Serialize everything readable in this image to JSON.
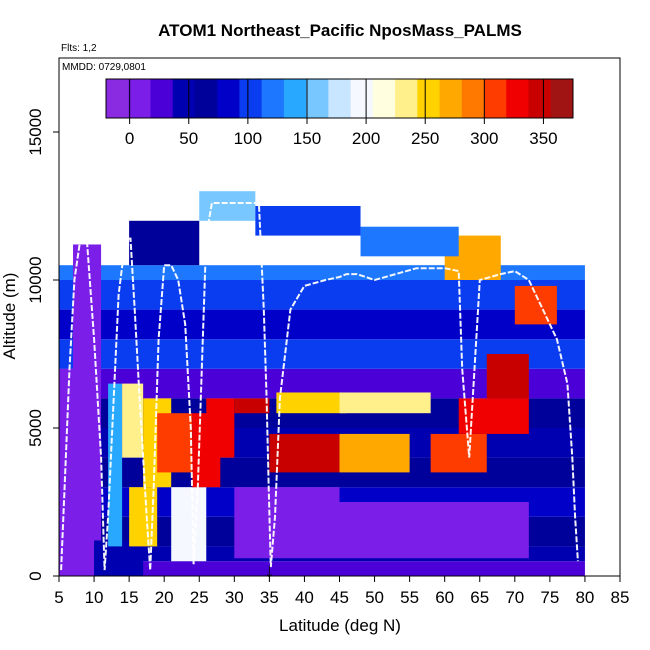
{
  "chart_data": {
    "type": "heatmap",
    "title": "ATOM1 Northeast_Pacific NposMass_PALMS",
    "flights_label": "Flts: 1,2",
    "date_label": "MMDD: 0729,0801",
    "xlabel": "Latitude (deg N)",
    "ylabel": "Altitude (m)",
    "xlim": [
      5,
      85
    ],
    "ylim": [
      0,
      17500
    ],
    "x_ticks": [
      "5",
      "10",
      "15",
      "20",
      "25",
      "30",
      "35",
      "40",
      "45",
      "50",
      "55",
      "60",
      "65",
      "70",
      "75",
      "80",
      "85"
    ],
    "y_ticks": [
      "0",
      "5000",
      "10000",
      "15000"
    ],
    "colorbar": {
      "range": [
        -20,
        375
      ],
      "ticks": [
        "0",
        "50",
        "100",
        "150",
        "200",
        "250",
        "300",
        "350"
      ],
      "colors": [
        "#8a2be2",
        "#7b1fe8",
        "#4b00d8",
        "#0000b0",
        "#00009a",
        "#0000c8",
        "#0a3cf0",
        "#1e78ff",
        "#28a8ff",
        "#78c8ff",
        "#c8e6ff",
        "#f5f8ff",
        "#ffffe0",
        "#fff08c",
        "#ffd200",
        "#ffa800",
        "#ff7800",
        "#ff3c00",
        "#f00000",
        "#c80000",
        "#a01414"
      ]
    },
    "altitude_bands_m": [
      [
        0,
        500
      ],
      [
        500,
        1000
      ],
      [
        1000,
        2000
      ],
      [
        2000,
        3000
      ],
      [
        3000,
        4000
      ],
      [
        4000,
        5000
      ],
      [
        5000,
        6000
      ],
      [
        6000,
        7000
      ],
      [
        7000,
        8000
      ],
      [
        8000,
        9000
      ],
      [
        9000,
        10000
      ],
      [
        10000,
        10500
      ],
      [
        10500,
        11000
      ],
      [
        11000,
        12000
      ],
      [
        12000,
        13000
      ]
    ],
    "profiles": [
      {
        "from": 5,
        "to": 80,
        "bands": [
          [
            0,
            500,
            20
          ],
          [
            500,
            1000,
            40
          ],
          [
            1000,
            2000,
            60
          ],
          [
            2000,
            3000,
            90
          ],
          [
            3000,
            4000,
            60
          ],
          [
            4000,
            5000,
            50
          ],
          [
            5000,
            6000,
            70
          ],
          [
            6000,
            7000,
            30
          ],
          [
            7000,
            8000,
            100
          ],
          [
            8000,
            9000,
            80
          ],
          [
            9000,
            10000,
            110
          ],
          [
            10000,
            10500,
            120
          ]
        ]
      }
    ],
    "segments": [
      {
        "lat": [
          5,
          10
        ],
        "alt": [
          0,
          7000
        ],
        "value": 5
      },
      {
        "lat": [
          7,
          11
        ],
        "alt": [
          0,
          11200
        ],
        "value": 10
      },
      {
        "lat": [
          10,
          17
        ],
        "alt": [
          0,
          1200
        ],
        "value": 40
      },
      {
        "lat": [
          12,
          14
        ],
        "alt": [
          1000,
          6500
        ],
        "value": 140
      },
      {
        "lat": [
          14,
          17
        ],
        "alt": [
          4000,
          6500
        ],
        "value": 240
      },
      {
        "lat": [
          15,
          19
        ],
        "alt": [
          1000,
          3000
        ],
        "value": 250
      },
      {
        "lat": [
          17,
          21
        ],
        "alt": [
          3000,
          6000
        ],
        "value": 260
      },
      {
        "lat": [
          19,
          24
        ],
        "alt": [
          3500,
          5500
        ],
        "value": 300
      },
      {
        "lat": [
          21,
          26
        ],
        "alt": [
          500,
          3000
        ],
        "value": 200
      },
      {
        "lat": [
          24,
          28
        ],
        "alt": [
          3000,
          5500
        ],
        "value": 320
      },
      {
        "lat": [
          26,
          30
        ],
        "alt": [
          4000,
          6000
        ],
        "value": 330
      },
      {
        "lat": [
          30,
          35
        ],
        "alt": [
          5500,
          6000
        ],
        "value": 345
      },
      {
        "lat": [
          35,
          45
        ],
        "alt": [
          3500,
          4800
        ],
        "value": 340
      },
      {
        "lat": [
          36,
          46
        ],
        "alt": [
          5500,
          6200
        ],
        "value": 250
      },
      {
        "lat": [
          45,
          55
        ],
        "alt": [
          3500,
          4800
        ],
        "value": 270
      },
      {
        "lat": [
          45,
          58
        ],
        "alt": [
          5500,
          6200
        ],
        "value": 230
      },
      {
        "lat": [
          58,
          66
        ],
        "alt": [
          3500,
          4800
        ],
        "value": 300
      },
      {
        "lat": [
          62,
          72
        ],
        "alt": [
          4800,
          6000
        ],
        "value": 320
      },
      {
        "lat": [
          66,
          72
        ],
        "alt": [
          6000,
          7500
        ],
        "value": 340
      },
      {
        "lat": [
          70,
          76
        ],
        "alt": [
          8500,
          9800
        ],
        "value": 300
      },
      {
        "lat": [
          60,
          68
        ],
        "alt": [
          10000,
          11500
        ],
        "value": 280
      },
      {
        "lat": [
          30,
          45
        ],
        "alt": [
          600,
          3000
        ],
        "value": 0
      },
      {
        "lat": [
          45,
          72
        ],
        "alt": [
          600,
          2500
        ],
        "value": 10
      },
      {
        "lat": [
          15,
          25
        ],
        "alt": [
          10500,
          12000
        ],
        "value": 60
      },
      {
        "lat": [
          25,
          33
        ],
        "alt": [
          12000,
          13000
        ],
        "value": 150
      },
      {
        "lat": [
          33,
          48
        ],
        "alt": [
          11500,
          12500
        ],
        "value": 100
      },
      {
        "lat": [
          48,
          62
        ],
        "alt": [
          10800,
          11800
        ],
        "value": 130
      }
    ],
    "flight_track": {
      "lat": [
        5.3,
        5.8,
        6.5,
        7.2,
        8.0,
        9.0,
        10.0,
        11.0,
        11.5,
        12.0,
        12.8,
        13.5,
        14.5,
        15.2,
        15.8,
        16.5,
        17.5,
        18.0,
        18.5,
        19.2,
        20.0,
        21.0,
        22.0,
        23.0,
        23.8,
        24.2,
        24.8,
        25.5,
        26.0,
        26.8,
        27.5,
        28.5,
        30.0,
        32.0,
        33.5,
        34.2,
        34.6,
        34.9,
        35.2,
        35.8,
        36.5,
        38.0,
        40.0,
        43.0,
        45.0,
        46.0,
        47.5,
        50.0,
        53.0,
        56.0,
        60.0,
        62.0,
        62.5,
        63.5,
        65.0,
        68.0,
        70.0,
        72.0,
        74.0,
        76.0,
        77.5,
        78.2,
        78.6,
        79.0
      ],
      "alt": [
        200,
        3000,
        7000,
        10000,
        11300,
        11300,
        8000,
        4000,
        200,
        2000,
        6000,
        9500,
        11400,
        11400,
        9000,
        6000,
        2000,
        200,
        3000,
        8000,
        10500,
        10500,
        10000,
        8500,
        5000,
        400,
        3000,
        8000,
        11500,
        12600,
        12600,
        12600,
        12600,
        12600,
        12600,
        9000,
        6000,
        3000,
        300,
        2000,
        6000,
        9000,
        9800,
        10000,
        10100,
        10200,
        10200,
        10000,
        10200,
        10400,
        10400,
        10300,
        7000,
        4000,
        10000,
        10200,
        10300,
        10000,
        9000,
        8000,
        6500,
        4000,
        2000,
        500
      ]
    },
    "marker": {
      "lat": 35,
      "label": "↓"
    }
  }
}
